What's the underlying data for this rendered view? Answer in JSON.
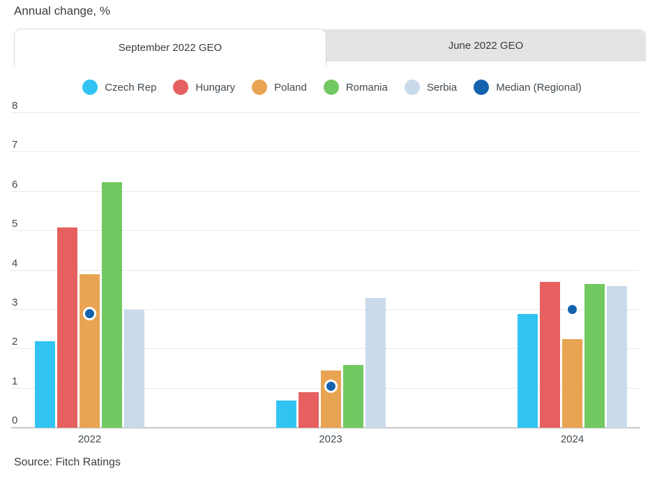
{
  "title": "Annual change, %",
  "source": "Source: Fitch Ratings",
  "tabs": [
    {
      "label": "September 2022 GEO",
      "active": true
    },
    {
      "label": "June 2022 GEO",
      "active": false
    }
  ],
  "colors": {
    "czech_rep": "#31C4F3",
    "hungary": "#E66060",
    "poland": "#E8A452",
    "romania": "#72C861",
    "serbia": "#C9DAEB",
    "median_regional": "#1462AD",
    "gridline": "#e8e8e8",
    "axis_line": "#c7c7c7",
    "tab_inactive_bg": "#e4e4e4",
    "text": "#3f4a52"
  },
  "chart_data": {
    "type": "bar",
    "title": "Annual change, %",
    "xlabel": "",
    "ylabel": "Annual change, %",
    "categories": [
      "2022",
      "2023",
      "2024"
    ],
    "series": [
      {
        "name": "Czech Rep",
        "type": "bar",
        "color": "#31C4F3",
        "values": [
          2.2,
          0.7,
          2.9
        ]
      },
      {
        "name": "Hungary",
        "type": "bar",
        "color": "#E66060",
        "values": [
          5.1,
          0.9,
          3.7
        ]
      },
      {
        "name": "Poland",
        "type": "bar",
        "color": "#E8A452",
        "values": [
          3.9,
          1.45,
          2.25
        ]
      },
      {
        "name": "Romania",
        "type": "bar",
        "color": "#72C861",
        "values": [
          6.25,
          1.6,
          3.65
        ]
      },
      {
        "name": "Serbia",
        "type": "bar",
        "color": "#C9DAEB",
        "values": [
          3.0,
          3.3,
          3.6
        ]
      },
      {
        "name": "Median (Regional)",
        "type": "point",
        "color": "#1462AD",
        "values": [
          2.9,
          1.05,
          3.0
        ]
      }
    ],
    "ylim": [
      0,
      8
    ],
    "yticks": [
      0,
      1,
      2,
      3,
      4,
      5,
      6,
      7,
      8
    ],
    "grid": true,
    "legend_position": "top"
  }
}
